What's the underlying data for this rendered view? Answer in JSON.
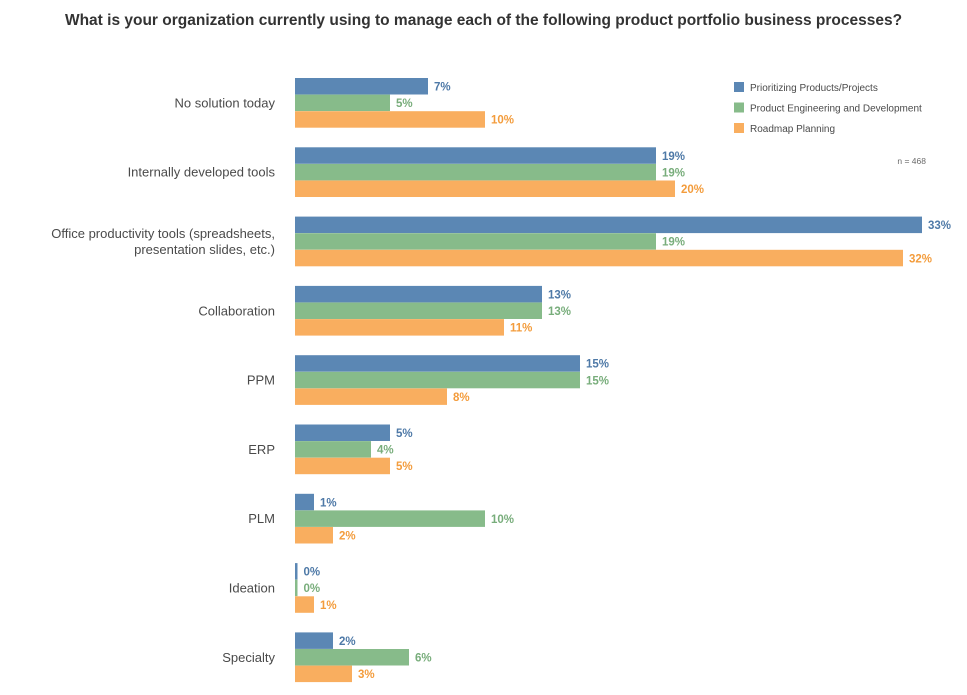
{
  "chart_data": {
    "type": "bar",
    "orientation": "horizontal",
    "title": "What is your organization currently using to manage each of the following product portfolio business processes?",
    "categories": [
      [
        "No solution today"
      ],
      [
        "Internally developed tools"
      ],
      [
        "Office productivity tools (spreadsheets,",
        "presentation slides, etc.)"
      ],
      [
        "Collaboration"
      ],
      [
        "PPM"
      ],
      [
        "ERP"
      ],
      [
        "PLM"
      ],
      [
        "Ideation"
      ],
      [
        "Specialty"
      ]
    ],
    "series": [
      {
        "name": "Prioritizing Products/Projects",
        "color": "#5b87b4",
        "label_color": "#4e79a7",
        "values": [
          7,
          19,
          33,
          13,
          15,
          5,
          1,
          0,
          2
        ],
        "labels": [
          "7%",
          "19%",
          "33%",
          "13%",
          "15%",
          "5%",
          "1%",
          "0%",
          "2%"
        ]
      },
      {
        "name": "Product Engineering and Development",
        "color": "#87bb8a",
        "label_color": "#78ad7b",
        "values": [
          5,
          19,
          19,
          13,
          15,
          4,
          10,
          0,
          6
        ],
        "labels": [
          "5%",
          "19%",
          "19%",
          "13%",
          "15%",
          "4%",
          "10%",
          "0%",
          "6%"
        ]
      },
      {
        "name": "Roadmap Planning",
        "color": "#f9ae5f",
        "label_color": "#f39c3c",
        "values": [
          10,
          20,
          32,
          11,
          8,
          5,
          2,
          1,
          3
        ],
        "labels": [
          "10%",
          "20%",
          "32%",
          "11%",
          "8%",
          "5%",
          "2%",
          "1%",
          "3%"
        ]
      }
    ],
    "xlim": [
      0,
      33
    ],
    "legend_position": "top-right",
    "note": "n = 468"
  }
}
